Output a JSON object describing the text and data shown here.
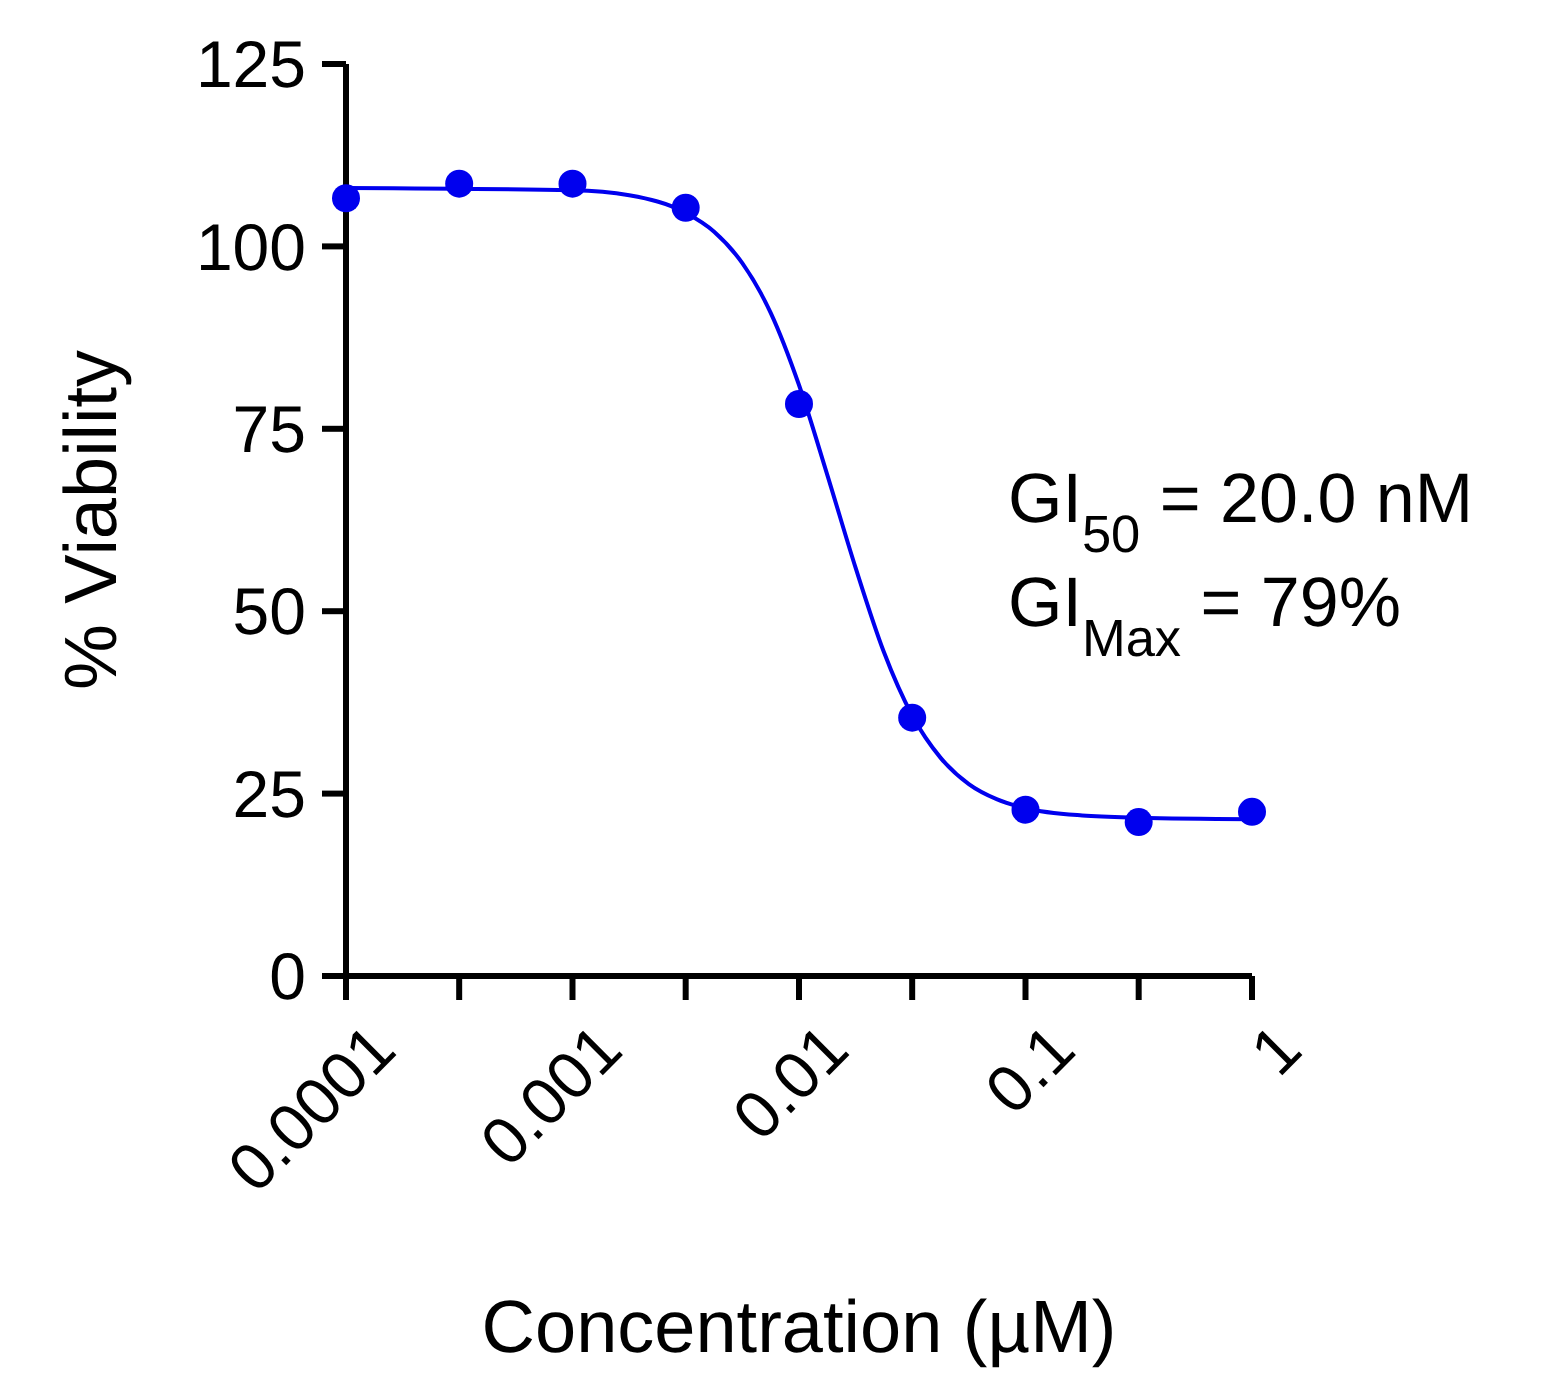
{
  "chart_data": {
    "type": "scatter",
    "xlabel": "Concentration (µM)",
    "ylabel": "% Viability",
    "log": "x",
    "xlim": [
      0.0001,
      1
    ],
    "ylim": [
      0,
      125
    ],
    "xticks": [
      {
        "value": 0.0001,
        "label": "0.0001"
      },
      {
        "value": 0.000316,
        "label": null
      },
      {
        "value": 0.001,
        "label": "0.001"
      },
      {
        "value": 0.00316,
        "label": null
      },
      {
        "value": 0.01,
        "label": "0.01"
      },
      {
        "value": 0.0316,
        "label": null
      },
      {
        "value": 0.1,
        "label": "0.1"
      },
      {
        "value": 0.316,
        "label": null
      },
      {
        "value": 1,
        "label": "1"
      }
    ],
    "yticks": [
      0,
      25,
      50,
      75,
      100,
      125
    ],
    "grid": false,
    "marker": "circle",
    "series": [
      {
        "color": "#0000ee",
        "x": [
          0.0001,
          0.000316,
          0.001,
          0.00316,
          0.01,
          0.0316,
          0.1,
          0.316,
          1
        ],
        "values": [
          106.6,
          108.6,
          108.6,
          105.3,
          78.4,
          35.4,
          22.8,
          21.1,
          22.5
        ]
      },
      {
        "type": "line",
        "color": "#0000ee",
        "marker": "none",
        "x": [
          0.0001,
          0.001,
          0.00178,
          0.00316,
          0.00422,
          0.00562,
          0.0075,
          0.01,
          0.0133,
          0.0178,
          0.0237,
          0.0316,
          0.0422,
          0.0562,
          0.075,
          0.1,
          0.178,
          0.316,
          1
        ],
        "values": [
          108.0,
          107.7,
          107.0,
          104.6,
          102.0,
          97.7,
          90.9,
          81.0,
          68.8,
          55.9,
          44.4,
          35.7,
          29.9,
          26.3,
          24.2,
          23.0,
          22.0,
          21.7,
          21.5
        ]
      }
    ],
    "annotations": [
      "GI$_{50}$ = 20.0 nM",
      "GI$_{Max}$ = 79%"
    ]
  }
}
